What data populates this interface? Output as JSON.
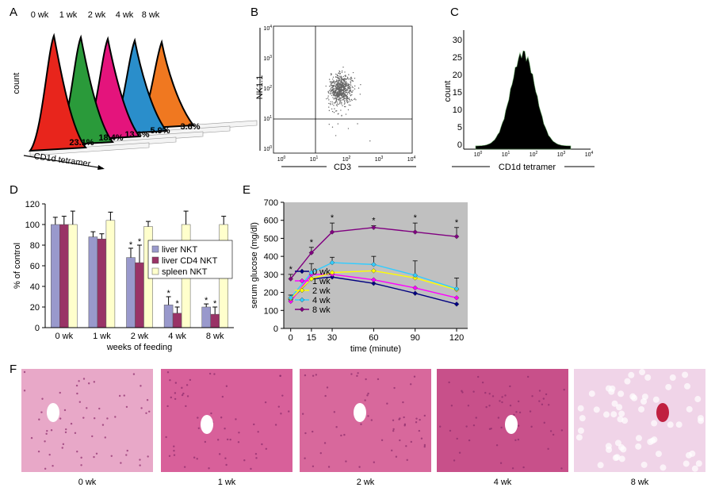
{
  "figure": {
    "panel_labels": [
      "A",
      "B",
      "C",
      "D",
      "E",
      "F"
    ]
  },
  "panel_a": {
    "headers": [
      "0 wk",
      "1 wk",
      "2 wk",
      "4 wk",
      "8 wk"
    ],
    "percentages": [
      "23.1%",
      "18.4%",
      "13.3%",
      "5.9%",
      "3.6%"
    ],
    "ylabel": "count",
    "xlabel": "CD1d tetramer"
  },
  "panel_b": {
    "ylabel": "NK1.1",
    "xlabel": "CD3",
    "tick_base": "10",
    "tick_exponents": [
      "0",
      "1",
      "2",
      "3",
      "4"
    ]
  },
  "panel_c": {
    "ylabel": "count",
    "xlabel": "CD1d tetramer",
    "tick_base": "10",
    "tick_exponents": [
      "0",
      "1",
      "2",
      "3",
      "4"
    ],
    "yticks": [
      "0",
      "5",
      "10",
      "15",
      "20",
      "25",
      "30"
    ]
  },
  "chart_data": [
    {
      "type": "bar",
      "xlabel": "weeks of feeding",
      "ylabel": "% of control",
      "categories": [
        "0 wk",
        "1 wk",
        "2 wk",
        "4 wk",
        "8 wk"
      ],
      "ylim": [
        0,
        120
      ],
      "yticks": [
        0,
        20,
        40,
        60,
        80,
        100,
        120
      ],
      "legend": "right",
      "series": [
        {
          "name": "liver NKT",
          "color": "#9999cc",
          "values": [
            100,
            88,
            68,
            22,
            20
          ],
          "errors": [
            7,
            5,
            9,
            8,
            3
          ],
          "significance": [
            null,
            null,
            "*",
            "*",
            "*"
          ]
        },
        {
          "name": "liver CD4 NKT",
          "color": "#993366",
          "values": [
            100,
            86,
            63,
            14,
            13
          ],
          "errors": [
            8,
            5,
            17,
            6,
            7
          ],
          "significance": [
            null,
            null,
            "*",
            "*",
            "*"
          ]
        },
        {
          "name": "spleen NKT",
          "color": "#ffffcc",
          "values": [
            100,
            104,
            98,
            100,
            100
          ],
          "errors": [
            13,
            8,
            5,
            13,
            8
          ],
          "significance": [
            null,
            null,
            null,
            null,
            null
          ]
        }
      ]
    },
    {
      "type": "line",
      "xlabel": "time (minute)",
      "ylabel": "serum glucose (mg/dl)",
      "x": [
        0,
        15,
        30,
        60,
        90,
        120
      ],
      "xlim": [
        -5,
        128
      ],
      "xticks": [
        0,
        15,
        30,
        60,
        90,
        120
      ],
      "ylim": [
        0,
        700
      ],
      "yticks": [
        0,
        100,
        200,
        300,
        400,
        500,
        600,
        700
      ],
      "legend": "lower left",
      "background": "#c0c0c0",
      "series": [
        {
          "name": "0 wk",
          "color": "#000080",
          "values": [
            160,
            275,
            285,
            250,
            195,
            135
          ]
        },
        {
          "name": "1 wk",
          "color": "#ff00ff",
          "values": [
            150,
            300,
            300,
            270,
            225,
            170
          ]
        },
        {
          "name": "2 wk",
          "color": "#ffff00",
          "values": [
            165,
            275,
            310,
            320,
            280,
            215
          ]
        },
        {
          "name": "4 wk",
          "color": "#33ccff",
          "values": [
            170,
            310,
            365,
            355,
            295,
            220
          ],
          "errors": [
            15,
            50,
            30,
            45,
            80,
            60
          ]
        },
        {
          "name": "8 wk",
          "color": "#800080",
          "values": [
            275,
            420,
            535,
            560,
            535,
            510
          ],
          "errors": [
            25,
            30,
            50,
            10,
            50,
            50
          ],
          "significance": [
            "*",
            "*",
            "*",
            "*",
            "*",
            "*"
          ]
        }
      ]
    }
  ],
  "panel_f": {
    "labels": [
      "0 wk",
      "1 wk",
      "2 wk",
      "4 wk",
      "8 wk"
    ]
  }
}
